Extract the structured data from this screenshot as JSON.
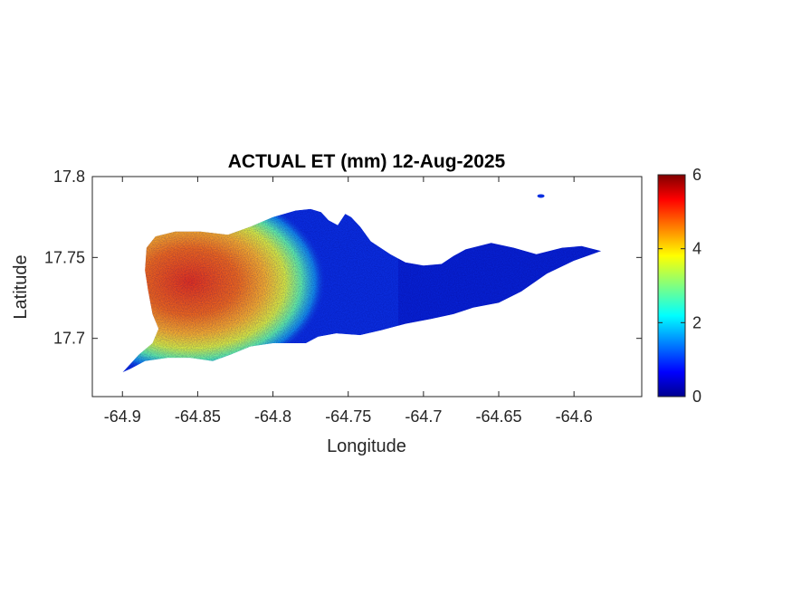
{
  "chart_data": {
    "type": "heatmap",
    "title": "ACTUAL ET (mm) 12-Aug-2025",
    "xlabel": "Longitude",
    "ylabel": "Latitude",
    "xlim": [
      -64.92,
      -64.555
    ],
    "ylim": [
      17.664,
      17.8
    ],
    "xticks": [
      -64.9,
      -64.85,
      -64.8,
      -64.75,
      -64.7,
      -64.65,
      -64.6
    ],
    "xtick_labels": [
      "-64.9",
      "-64.85",
      "-64.8",
      "-64.75",
      "-64.7",
      "-64.65",
      "-64.6"
    ],
    "yticks": [
      17.7,
      17.75,
      17.8
    ],
    "ytick_labels": [
      "17.7",
      "17.75",
      "17.8"
    ],
    "colorbar": {
      "colormap": "jet",
      "limits": [
        0,
        6
      ],
      "ticks": [
        0,
        2,
        4,
        6
      ],
      "tick_labels": [
        "0",
        "2",
        "4",
        "6"
      ]
    },
    "grid": false,
    "hotspot": {
      "lon": -64.855,
      "lat": 17.735,
      "peak_value": 5.3,
      "description_value_range": [
        3.5,
        5.5
      ]
    },
    "background_value": 0.6,
    "island_outline": [
      [
        -64.9,
        17.679
      ],
      [
        -64.889,
        17.69
      ],
      [
        -64.88,
        17.697
      ],
      [
        -64.876,
        17.706
      ],
      [
        -64.88,
        17.715
      ],
      [
        -64.883,
        17.73
      ],
      [
        -64.885,
        17.742
      ],
      [
        -64.884,
        17.756
      ],
      [
        -64.878,
        17.763
      ],
      [
        -64.865,
        17.766
      ],
      [
        -64.848,
        17.766
      ],
      [
        -64.83,
        17.764
      ],
      [
        -64.815,
        17.769
      ],
      [
        -64.8,
        17.775
      ],
      [
        -64.785,
        17.779
      ],
      [
        -64.775,
        17.78
      ],
      [
        -64.768,
        17.778
      ],
      [
        -64.763,
        17.773
      ],
      [
        -64.757,
        17.77
      ],
      [
        -64.752,
        17.777
      ],
      [
        -64.748,
        17.775
      ],
      [
        -64.742,
        17.769
      ],
      [
        -64.735,
        17.76
      ],
      [
        -64.722,
        17.752
      ],
      [
        -64.712,
        17.747
      ],
      [
        -64.7,
        17.745
      ],
      [
        -64.688,
        17.746
      ],
      [
        -64.68,
        17.751
      ],
      [
        -64.672,
        17.755
      ],
      [
        -64.655,
        17.759
      ],
      [
        -64.64,
        17.756
      ],
      [
        -64.625,
        17.752
      ],
      [
        -64.608,
        17.756
      ],
      [
        -64.595,
        17.757
      ],
      [
        -64.582,
        17.754
      ],
      [
        -64.6,
        17.748
      ],
      [
        -64.618,
        17.74
      ],
      [
        -64.635,
        17.729
      ],
      [
        -64.65,
        17.722
      ],
      [
        -64.667,
        17.719
      ],
      [
        -64.68,
        17.715
      ],
      [
        -64.695,
        17.712
      ],
      [
        -64.712,
        17.709
      ],
      [
        -64.728,
        17.705
      ],
      [
        -64.742,
        17.702
      ],
      [
        -64.758,
        17.703
      ],
      [
        -64.77,
        17.701
      ],
      [
        -64.778,
        17.697
      ],
      [
        -64.79,
        17.697
      ],
      [
        -64.8,
        17.697
      ],
      [
        -64.815,
        17.695
      ],
      [
        -64.828,
        17.69
      ],
      [
        -64.84,
        17.686
      ],
      [
        -64.855,
        17.688
      ],
      [
        -64.87,
        17.688
      ],
      [
        -64.885,
        17.686
      ],
      [
        -64.895,
        17.681
      ]
    ],
    "islet": [
      -64.622,
      17.788
    ]
  }
}
